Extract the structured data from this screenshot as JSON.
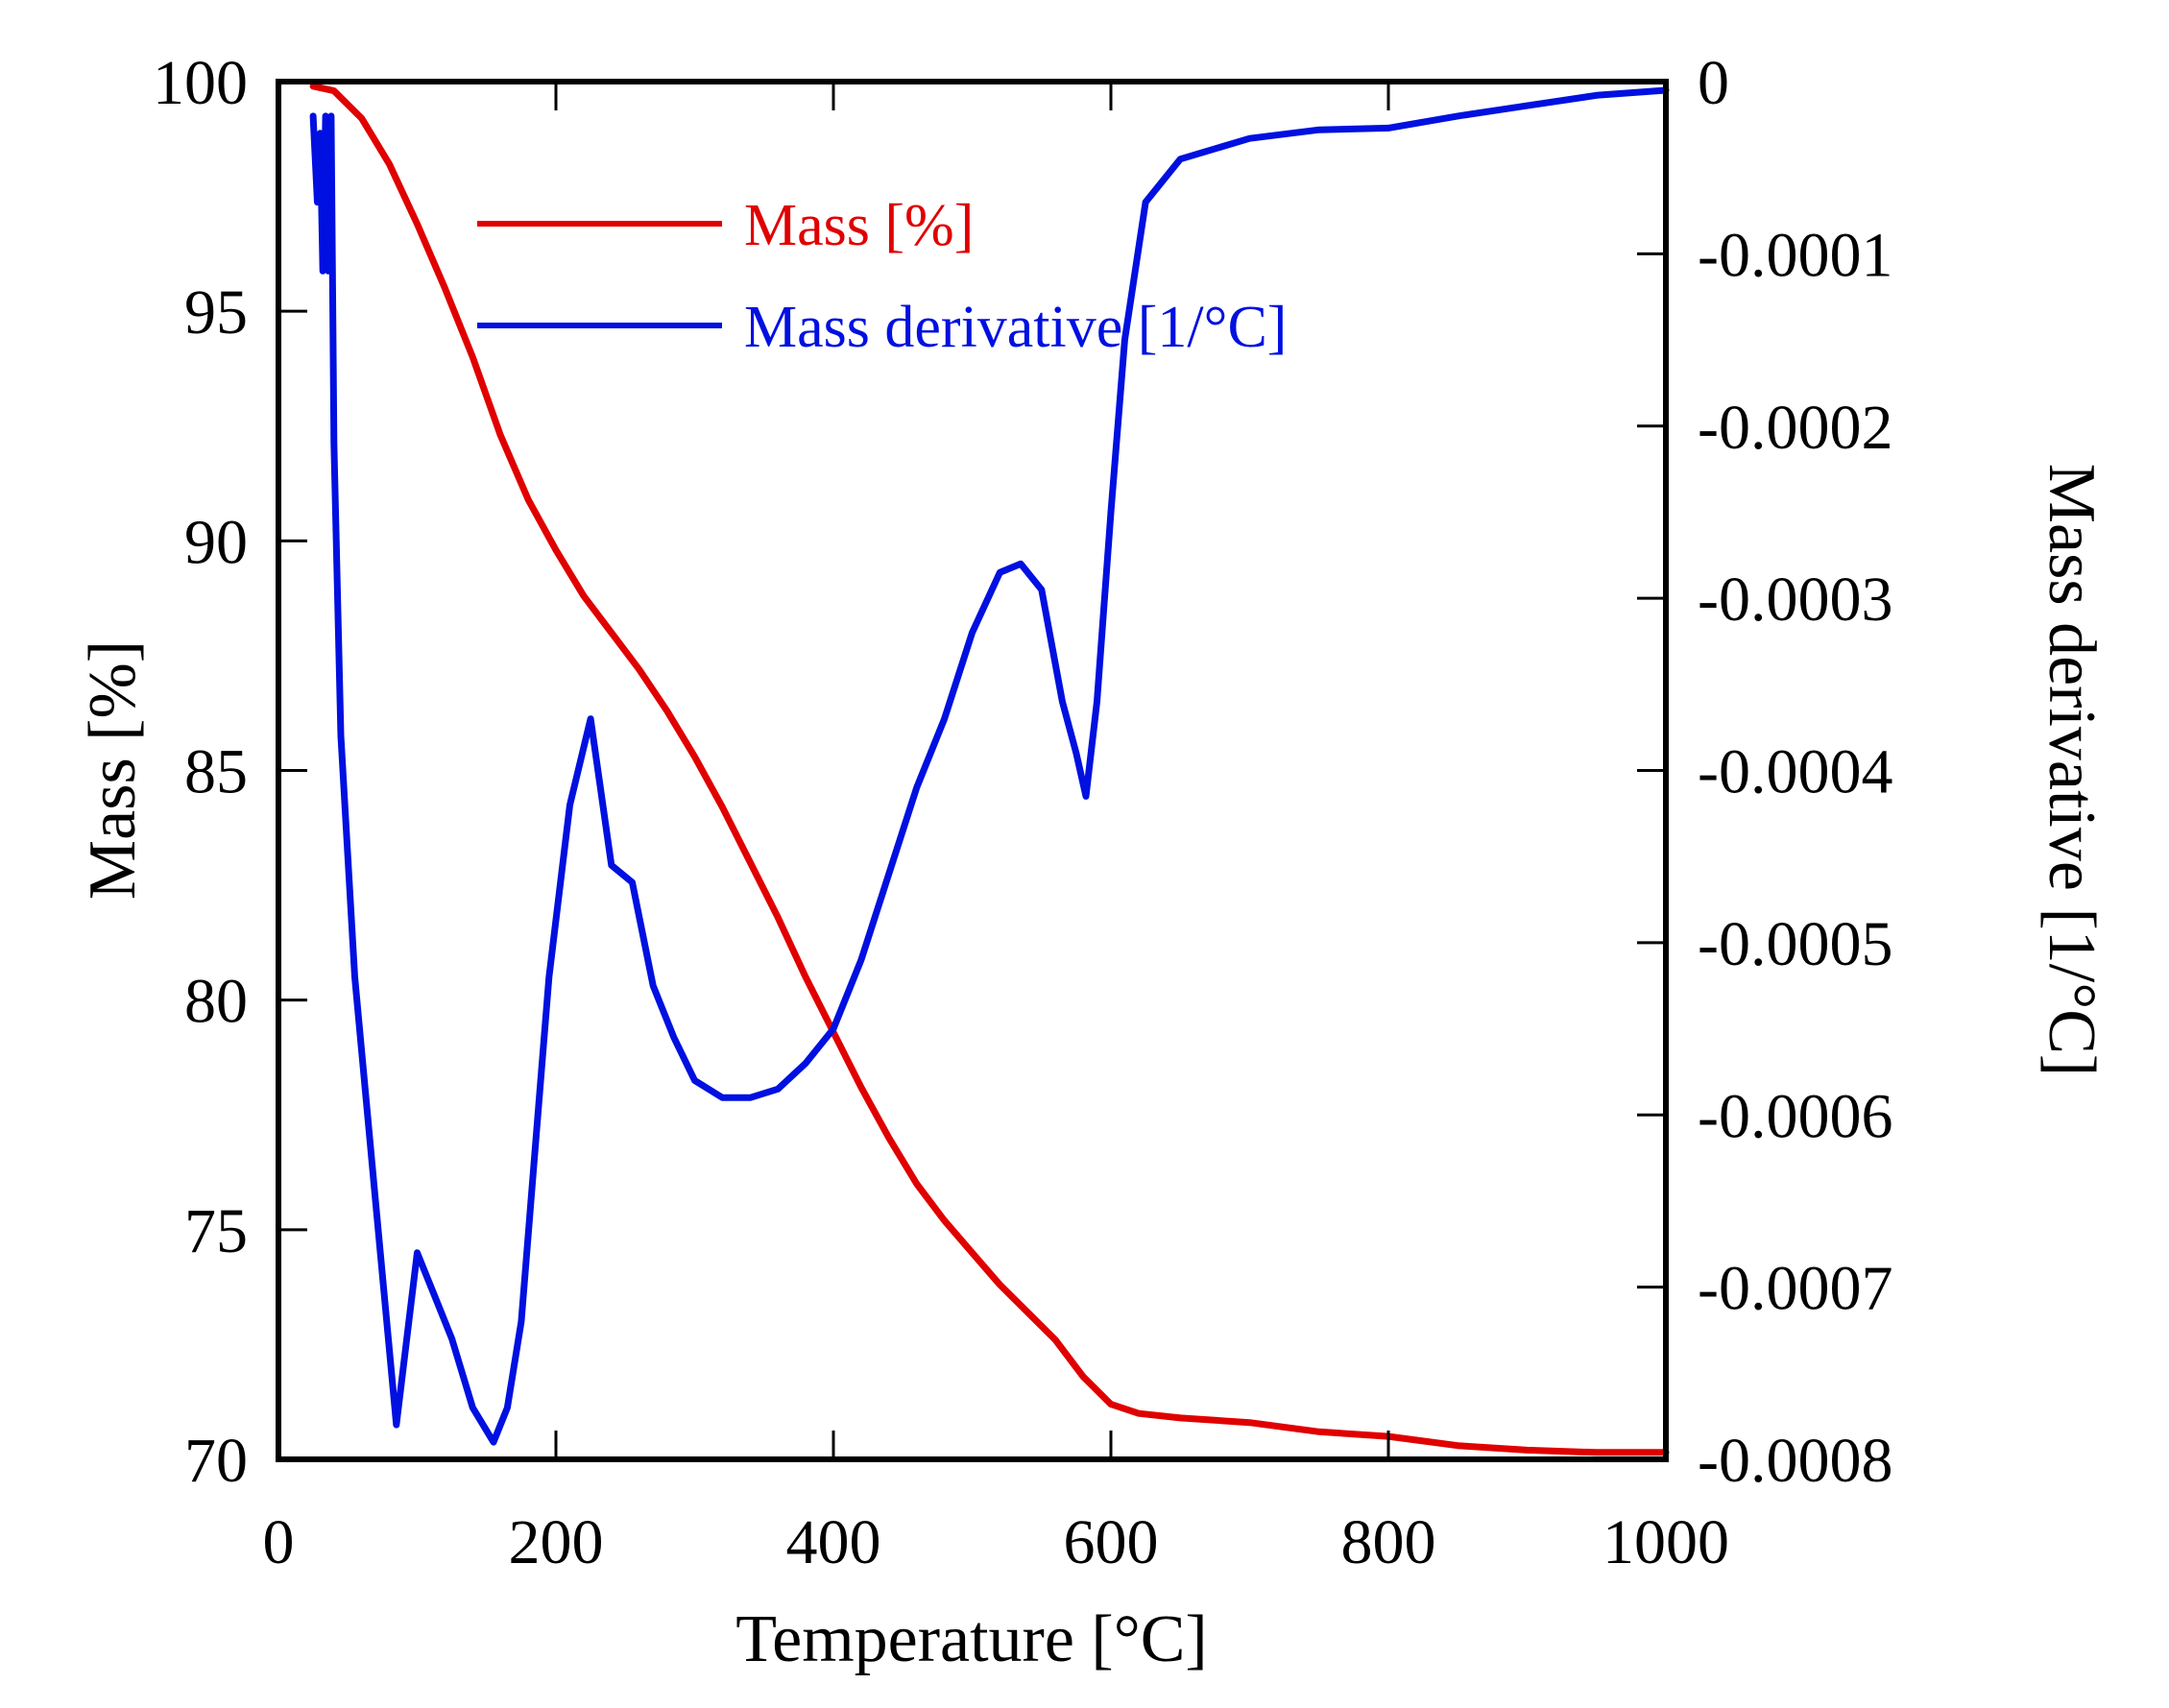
{
  "chart_data": {
    "type": "line",
    "title": "",
    "xlabel": "Temperature [°C]",
    "ylabel": "Mass [%]",
    "y2label": "Mass derivative [1/°C]",
    "xlim": [
      0,
      1000
    ],
    "ylim": [
      70,
      100
    ],
    "y2lim": [
      -0.0008,
      0
    ],
    "grid": false,
    "legend_position": "top-center",
    "x_ticks": [
      "0",
      "200",
      "400",
      "600",
      "800",
      "1000"
    ],
    "y_ticks": [
      "70",
      "75",
      "80",
      "85",
      "90",
      "95",
      "100"
    ],
    "y2_ticks": [
      "-0.0008",
      "-0.0007",
      "-0.0006",
      "-0.0005",
      "-0.0004",
      "-0.0003",
      "-0.0002",
      "-0.0001",
      "0"
    ],
    "series": [
      {
        "name": "Mass [%]",
        "axis": "left",
        "color": "#e00000",
        "x": [
          25,
          40,
          60,
          80,
          100,
          120,
          140,
          160,
          180,
          200,
          220,
          240,
          260,
          280,
          300,
          320,
          340,
          360,
          380,
          400,
          420,
          440,
          460,
          480,
          500,
          520,
          540,
          560,
          580,
          600,
          620,
          650,
          700,
          750,
          800,
          850,
          900,
          950,
          1000
        ],
        "values": [
          99.9,
          99.8,
          99.2,
          98.2,
          96.9,
          95.5,
          94.0,
          92.3,
          90.9,
          89.8,
          88.8,
          88.0,
          87.2,
          86.3,
          85.3,
          84.2,
          83.0,
          81.8,
          80.5,
          79.3,
          78.1,
          77.0,
          76.0,
          75.2,
          74.5,
          73.8,
          73.2,
          72.6,
          71.8,
          71.2,
          71.0,
          70.9,
          70.8,
          70.6,
          70.5,
          70.3,
          70.2,
          70.15,
          70.15
        ]
      },
      {
        "name": "Mass derivative [1/°C]",
        "axis": "right",
        "color": "#0010e0",
        "x": [
          25,
          28,
          30,
          32,
          34,
          36,
          38,
          40,
          45,
          55,
          70,
          85,
          100,
          115,
          125,
          140,
          155,
          165,
          175,
          185,
          195,
          210,
          225,
          240,
          255,
          270,
          285,
          300,
          320,
          340,
          360,
          380,
          400,
          420,
          440,
          460,
          480,
          500,
          520,
          535,
          550,
          565,
          575,
          582,
          590,
          600,
          610,
          625,
          650,
          700,
          750,
          800,
          850,
          900,
          950,
          1000
        ],
        "values": [
          -2e-05,
          -7e-05,
          -3e-05,
          -0.00011,
          -2e-05,
          -0.00011,
          -2e-05,
          -0.00021,
          -0.00038,
          -0.00052,
          -0.00065,
          -0.00078,
          -0.00068,
          -0.00071,
          -0.00073,
          -0.00077,
          -0.00079,
          -0.00077,
          -0.00072,
          -0.00062,
          -0.00052,
          -0.00042,
          -0.00037,
          -0.000455,
          -0.000465,
          -0.000525,
          -0.000555,
          -0.00058,
          -0.00059,
          -0.00059,
          -0.000585,
          -0.00057,
          -0.00055,
          -0.00051,
          -0.00046,
          -0.00041,
          -0.00037,
          -0.00032,
          -0.000285,
          -0.00028,
          -0.000295,
          -0.00036,
          -0.00039,
          -0.000415,
          -0.00036,
          -0.00025,
          -0.00015,
          -7e-05,
          -4.5e-05,
          -3.3e-05,
          -2.8e-05,
          -2.7e-05,
          -2e-05,
          -1.4e-05,
          -8e-06,
          -5e-06
        ]
      }
    ]
  }
}
